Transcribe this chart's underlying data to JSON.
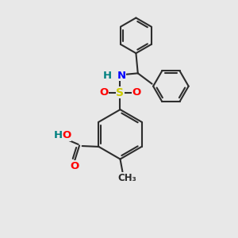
{
  "bg_color": "#e8e8e8",
  "bond_color": "#2d2d2d",
  "bond_width": 1.5,
  "atom_colors": {
    "N": "#0000ff",
    "S": "#cccc00",
    "O": "#ff0000",
    "H": "#008080",
    "C": "#2d2d2d"
  },
  "font_size": 9.5,
  "font_size_ch3": 8.5
}
